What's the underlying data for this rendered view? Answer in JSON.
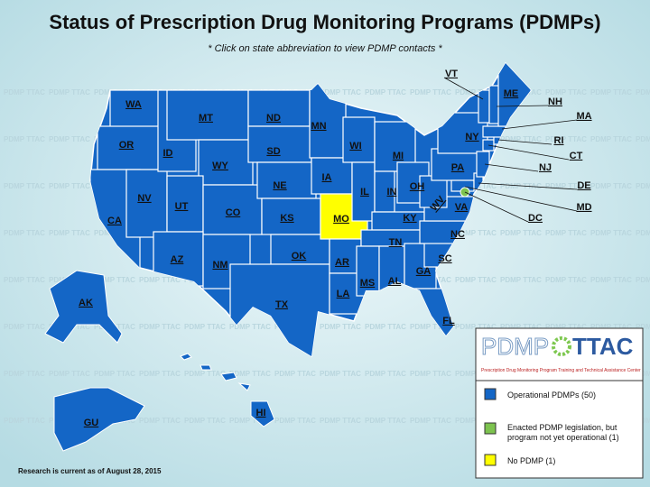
{
  "title": "Status of Prescription Drug Monitoring Programs (PDMPs)",
  "subtitle": "* Click on state abbreviation to view PDMP contacts *",
  "watermark": "PDMP TTAC",
  "logo": {
    "left": "PDMP",
    "right": "TTAC",
    "tagline": "Prescription Drug Monitoring Program Training and Technical Assistance Center"
  },
  "legend": {
    "items": [
      {
        "label": "Operational PDMPs (50)",
        "color": "#1466c6"
      },
      {
        "label": "Enacted PDMP legislation, but program not yet operational (1)",
        "color": "#7dc34f"
      },
      {
        "label": "No PDMP (1)",
        "color": "#ffff00"
      }
    ]
  },
  "states": [
    {
      "abbr": "WA",
      "status": 0
    },
    {
      "abbr": "OR",
      "status": 0
    },
    {
      "abbr": "CA",
      "status": 0
    },
    {
      "abbr": "NV",
      "status": 0
    },
    {
      "abbr": "ID",
      "status": 0
    },
    {
      "abbr": "MT",
      "status": 0
    },
    {
      "abbr": "WY",
      "status": 0
    },
    {
      "abbr": "UT",
      "status": 0
    },
    {
      "abbr": "CO",
      "status": 0
    },
    {
      "abbr": "AZ",
      "status": 0
    },
    {
      "abbr": "NM",
      "status": 0
    },
    {
      "abbr": "ND",
      "status": 0
    },
    {
      "abbr": "SD",
      "status": 0
    },
    {
      "abbr": "NE",
      "status": 0
    },
    {
      "abbr": "KS",
      "status": 0
    },
    {
      "abbr": "OK",
      "status": 0
    },
    {
      "abbr": "TX",
      "status": 0
    },
    {
      "abbr": "MN",
      "status": 0
    },
    {
      "abbr": "IA",
      "status": 0
    },
    {
      "abbr": "MO",
      "status": 2
    },
    {
      "abbr": "AR",
      "status": 0
    },
    {
      "abbr": "LA",
      "status": 0
    },
    {
      "abbr": "WI",
      "status": 0
    },
    {
      "abbr": "IL",
      "status": 0
    },
    {
      "abbr": "MI",
      "status": 0
    },
    {
      "abbr": "IN",
      "status": 0
    },
    {
      "abbr": "OH",
      "status": 0
    },
    {
      "abbr": "KY",
      "status": 0
    },
    {
      "abbr": "TN",
      "status": 0
    },
    {
      "abbr": "MS",
      "status": 0
    },
    {
      "abbr": "AL",
      "status": 0
    },
    {
      "abbr": "GA",
      "status": 0
    },
    {
      "abbr": "FL",
      "status": 0
    },
    {
      "abbr": "SC",
      "status": 0
    },
    {
      "abbr": "NC",
      "status": 0
    },
    {
      "abbr": "VA",
      "status": 0
    },
    {
      "abbr": "WV",
      "status": 0
    },
    {
      "abbr": "PA",
      "status": 0
    },
    {
      "abbr": "NY",
      "status": 0
    },
    {
      "abbr": "MD",
      "status": 0
    },
    {
      "abbr": "DE",
      "status": 0
    },
    {
      "abbr": "NJ",
      "status": 0
    },
    {
      "abbr": "CT",
      "status": 0
    },
    {
      "abbr": "RI",
      "status": 0
    },
    {
      "abbr": "MA",
      "status": 0
    },
    {
      "abbr": "VT",
      "status": 0
    },
    {
      "abbr": "NH",
      "status": 0
    },
    {
      "abbr": "ME",
      "status": 0
    },
    {
      "abbr": "DC",
      "status": 1
    },
    {
      "abbr": "AK",
      "status": 0
    },
    {
      "abbr": "HI",
      "status": 0
    },
    {
      "abbr": "GU",
      "status": 0
    }
  ],
  "footnote": "Research is current as of August 28, 2015"
}
